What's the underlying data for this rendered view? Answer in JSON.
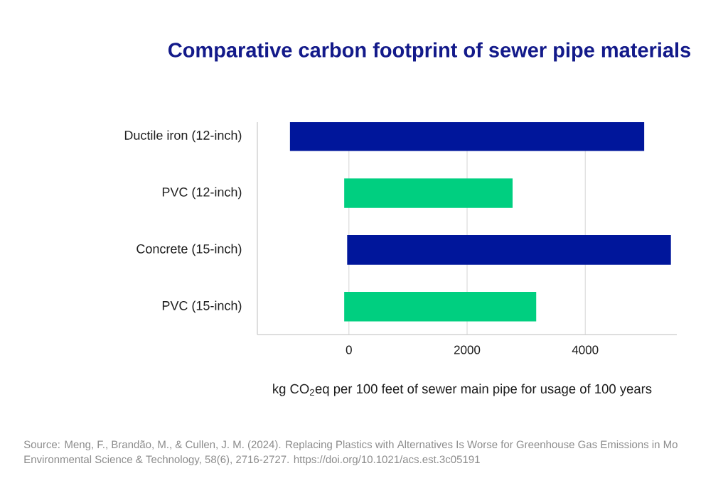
{
  "chart_data": {
    "type": "bar",
    "orientation": "horizontal",
    "title": "Comparative carbon footprint of sewer pipe materials",
    "xlabel": "kg CO$_{2}$eq per 100 feet of sewer main pipe for usage of 100 years",
    "categories": [
      "Ductile iron (12-inch)",
      "PVC (12-inch)",
      "Concrete (15-inch)",
      "PVC (15-inch)"
    ],
    "base": [
      -1000,
      -80,
      -30,
      -80
    ],
    "values": [
      6000,
      2850,
      5480,
      3250
    ],
    "colors": [
      "#00169b",
      "#00cf80",
      "#00169b",
      "#00cf80"
    ],
    "xlim": [
      -1550,
      5550
    ],
    "xticks": [
      0,
      2000,
      4000
    ],
    "grid": "x",
    "annotations": [
      "Source: Meng, F., Brandão, M., & Cullen, J. M. (2024). Replacing Plastics with Alternatives Is Worse for Greenhouse Gas Emissions in Mo",
      "Environmental Science & Technology, 58(6), 2716-2727. https://doi.org/10.1021/acs.est.3c05191"
    ]
  }
}
